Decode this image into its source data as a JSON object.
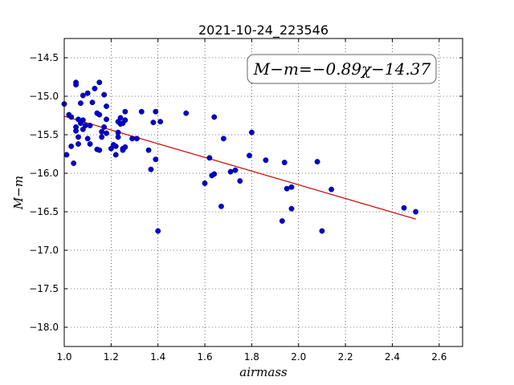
{
  "chart_data": {
    "type": "scatter",
    "title": "2021-10-24_223546",
    "xlabel": "airmass",
    "ylabel": "M−m",
    "annotation": "M−m=−0.89χ−14.37",
    "xlim": [
      1.0,
      2.7
    ],
    "ylim": [
      -18.25,
      -14.25
    ],
    "y_inverted": true,
    "grid": true,
    "x_ticks": [
      1.0,
      1.2,
      1.4,
      1.6,
      1.8,
      2.0,
      2.2,
      2.4,
      2.6
    ],
    "x_tick_labels": [
      "1.0",
      "1.2",
      "1.4",
      "1.6",
      "1.8",
      "2.0",
      "2.2",
      "2.4",
      "2.6"
    ],
    "y_ticks": [
      -14.5,
      -15.0,
      -15.5,
      -16.0,
      -16.5,
      -17.0,
      -17.5,
      -18.0
    ],
    "y_tick_labels": [
      "−14.5",
      "−15.0",
      "−15.5",
      "−16.0",
      "−16.5",
      "−17.0",
      "−17.5",
      "−18.0"
    ],
    "fit": {
      "slope": -0.89,
      "intercept": -14.37,
      "x_range": [
        1.0,
        2.5
      ],
      "color": "#cc0000"
    },
    "points_color": "#0000cc",
    "points": [
      [
        1.0,
        -15.1
      ],
      [
        1.01,
        -15.76
      ],
      [
        1.02,
        -15.24
      ],
      [
        1.03,
        -15.65
      ],
      [
        1.03,
        -15.27
      ],
      [
        1.04,
        -15.87
      ],
      [
        1.05,
        -14.82
      ],
      [
        1.05,
        -14.85
      ],
      [
        1.05,
        -15.4
      ],
      [
        1.05,
        -15.45
      ],
      [
        1.06,
        -15.53
      ],
      [
        1.06,
        -15.3
      ],
      [
        1.06,
        -15.62
      ],
      [
        1.07,
        -15.09
      ],
      [
        1.07,
        -15.35
      ],
      [
        1.08,
        -15.31
      ],
      [
        1.08,
        -14.99
      ],
      [
        1.08,
        -15.43
      ],
      [
        1.09,
        -15.38
      ],
      [
        1.1,
        -14.96
      ],
      [
        1.1,
        -15.55
      ],
      [
        1.11,
        -15.38
      ],
      [
        1.11,
        -15.62
      ],
      [
        1.12,
        -15.08
      ],
      [
        1.13,
        -14.9
      ],
      [
        1.14,
        -15.69
      ],
      [
        1.14,
        -15.22
      ],
      [
        1.15,
        -15.24
      ],
      [
        1.15,
        -14.82
      ],
      [
        1.15,
        -15.7
      ],
      [
        1.16,
        -15.53
      ],
      [
        1.16,
        -15.46
      ],
      [
        1.17,
        -14.98
      ],
      [
        1.17,
        -15.4
      ],
      [
        1.18,
        -15.13
      ],
      [
        1.18,
        -15.3
      ],
      [
        1.18,
        -15.48
      ],
      [
        1.2,
        -15.68
      ],
      [
        1.21,
        -15.63
      ],
      [
        1.22,
        -15.76
      ],
      [
        1.22,
        -15.65
      ],
      [
        1.23,
        -15.33
      ],
      [
        1.23,
        -15.47
      ],
      [
        1.23,
        -15.53
      ],
      [
        1.24,
        -15.36
      ],
      [
        1.24,
        -15.28
      ],
      [
        1.25,
        -15.35
      ],
      [
        1.25,
        -15.68
      ],
      [
        1.25,
        -15.7
      ],
      [
        1.26,
        -15.66
      ],
      [
        1.26,
        -15.31
      ],
      [
        1.26,
        -15.2
      ],
      [
        1.29,
        -15.55
      ],
      [
        1.31,
        -15.55
      ],
      [
        1.33,
        -15.2
      ],
      [
        1.36,
        -15.7
      ],
      [
        1.37,
        -15.95
      ],
      [
        1.38,
        -15.34
      ],
      [
        1.39,
        -15.82
      ],
      [
        1.39,
        -15.2
      ],
      [
        1.4,
        -16.75
      ],
      [
        1.41,
        -15.33
      ],
      [
        1.52,
        -15.22
      ],
      [
        1.6,
        -16.13
      ],
      [
        1.62,
        -15.8
      ],
      [
        1.63,
        -16.03
      ],
      [
        1.64,
        -16.01
      ],
      [
        1.64,
        -15.27
      ],
      [
        1.67,
        -16.43
      ],
      [
        1.68,
        -15.55
      ],
      [
        1.71,
        -15.98
      ],
      [
        1.73,
        -15.96
      ],
      [
        1.75,
        -16.1
      ],
      [
        1.79,
        -15.77
      ],
      [
        1.8,
        -15.47
      ],
      [
        1.86,
        -15.83
      ],
      [
        1.93,
        -16.62
      ],
      [
        1.94,
        -15.86
      ],
      [
        1.95,
        -16.2
      ],
      [
        1.97,
        -16.18
      ],
      [
        1.97,
        -16.46
      ],
      [
        2.08,
        -15.85
      ],
      [
        2.1,
        -16.75
      ],
      [
        2.14,
        -16.21
      ],
      [
        2.45,
        -16.45
      ],
      [
        2.5,
        -16.5
      ]
    ]
  }
}
